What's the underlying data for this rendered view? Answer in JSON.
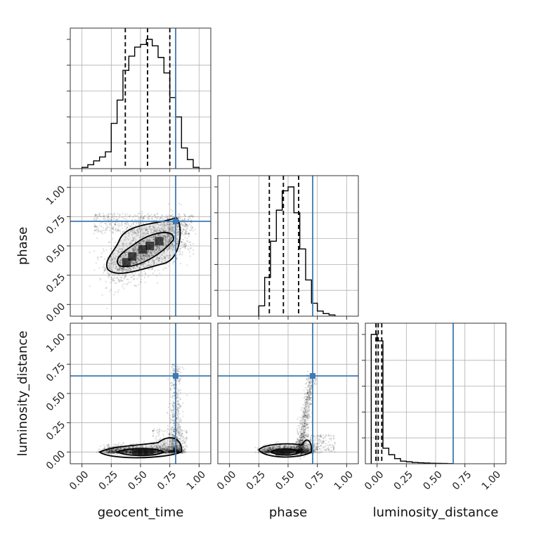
{
  "chart_data": {
    "type": "corner",
    "parameters": [
      "geocent_time",
      "phase",
      "luminosity_distance"
    ],
    "truth_color": "#3d7ab3",
    "hist_color": "#000000",
    "axis_range": [
      -0.1,
      1.1
    ],
    "tick_values": [
      0.0,
      0.25,
      0.5,
      0.75,
      1.0
    ],
    "tick_labels": [
      "0.00",
      "0.25",
      "0.50",
      "0.75",
      "1.00"
    ],
    "grid": true,
    "truths": {
      "geocent_time": 0.8,
      "phase": 0.71,
      "luminosity_distance": 0.65
    },
    "quantiles": {
      "geocent_time": [
        0.37,
        0.56,
        0.75
      ],
      "phase": [
        0.34,
        0.46,
        0.59
      ],
      "luminosity_distance": [
        -0.01,
        0.01,
        0.04
      ]
    },
    "histograms": {
      "geocent_time": {
        "bin_edges": [
          0.0,
          0.05,
          0.1,
          0.15,
          0.2,
          0.25,
          0.3,
          0.35,
          0.4,
          0.45,
          0.5,
          0.55,
          0.6,
          0.65,
          0.7,
          0.75,
          0.8,
          0.85,
          0.9,
          0.95,
          1.0
        ],
        "counts": [
          0.01,
          0.03,
          0.06,
          0.09,
          0.13,
          0.35,
          0.53,
          0.76,
          0.87,
          0.94,
          0.96,
          1.0,
          0.95,
          0.86,
          0.74,
          0.55,
          0.4,
          0.16,
          0.07,
          0.01
        ]
      },
      "phase": {
        "bin_edges": [
          0.25,
          0.3,
          0.35,
          0.4,
          0.45,
          0.5,
          0.55,
          0.6,
          0.65,
          0.7,
          0.75,
          0.8,
          0.85,
          0.9
        ],
        "counts": [
          0.08,
          0.3,
          0.58,
          0.82,
          0.97,
          1.0,
          0.8,
          0.52,
          0.28,
          0.1,
          0.04,
          0.02,
          0.01
        ]
      },
      "luminosity_distance": {
        "bin_edges": [
          -0.05,
          0.0,
          0.05,
          0.1,
          0.15,
          0.2,
          0.25,
          0.3,
          0.35,
          0.4,
          0.45,
          0.5,
          0.55,
          0.6,
          0.65
        ],
        "counts": [
          1.0,
          0.95,
          0.12,
          0.07,
          0.04,
          0.02,
          0.015,
          0.01,
          0.008,
          0.006,
          0.004,
          0.003,
          0.002,
          0.001
        ]
      }
    }
  }
}
